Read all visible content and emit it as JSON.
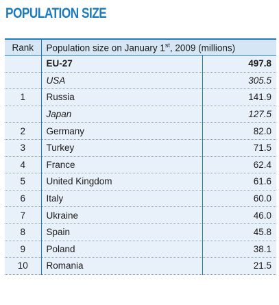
{
  "title": "POPULATION SIZE",
  "header": {
    "rank": "Rank",
    "population_prefix": "Population size on January 1",
    "population_sup": "st",
    "population_suffix": ", 2009 (millions)"
  },
  "rows": [
    {
      "rank": "",
      "name": "EU-27",
      "value": "497.8",
      "style": "bold"
    },
    {
      "rank": "",
      "name": "USA",
      "value": "305.5",
      "style": "italic"
    },
    {
      "rank": "1",
      "name": "Russia",
      "value": "141.9",
      "style": "normal"
    },
    {
      "rank": "",
      "name": "Japan",
      "value": "127.5",
      "style": "italic"
    },
    {
      "rank": "2",
      "name": "Germany",
      "value": "82.0",
      "style": "normal"
    },
    {
      "rank": "3",
      "name": "Turkey",
      "value": "71.5",
      "style": "normal"
    },
    {
      "rank": "4",
      "name": "France",
      "value": "62.4",
      "style": "normal"
    },
    {
      "rank": "5",
      "name": "United Kingdom",
      "value": "61.6",
      "style": "normal"
    },
    {
      "rank": "6",
      "name": "Italy",
      "value": "60.0",
      "style": "normal"
    },
    {
      "rank": "7",
      "name": "Ukraine",
      "value": "46.0",
      "style": "normal"
    },
    {
      "rank": "8",
      "name": "Spain",
      "value": "45.8",
      "style": "normal"
    },
    {
      "rank": "9",
      "name": "Poland",
      "value": "38.1",
      "style": "normal"
    },
    {
      "rank": "10",
      "name": "Romania",
      "value": "21.5",
      "style": "normal"
    }
  ],
  "colors": {
    "accent": "#1c7bbf",
    "header_bg": "#d6e6f5",
    "row_bg": "#e8f1fa"
  }
}
